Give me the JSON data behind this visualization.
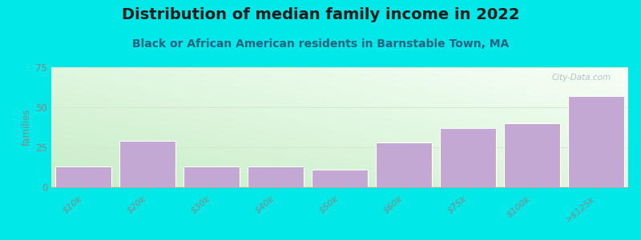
{
  "title": "Distribution of median family income in 2022",
  "subtitle": "Black or African American residents in Barnstable Town, MA",
  "categories": [
    "$10k",
    "$20k",
    "$30k",
    "$40k",
    "$50k",
    "$60k",
    "$75k",
    "$100k",
    ">$125k"
  ],
  "values": [
    13,
    29,
    13,
    13,
    11,
    28,
    37,
    40,
    57
  ],
  "bar_color": "#c4a8d4",
  "bar_edge_color": "#ffffff",
  "background_color": "#00e8e8",
  "title_fontsize": 14,
  "subtitle_fontsize": 10,
  "ylabel": "families",
  "ylim": [
    0,
    75
  ],
  "yticks": [
    0,
    25,
    50,
    75
  ],
  "watermark": "City-Data.com",
  "title_color": "#1a1a1a",
  "subtitle_color": "#2a6080",
  "tick_label_color": "#888888",
  "grid_color": "#e0e8d8"
}
